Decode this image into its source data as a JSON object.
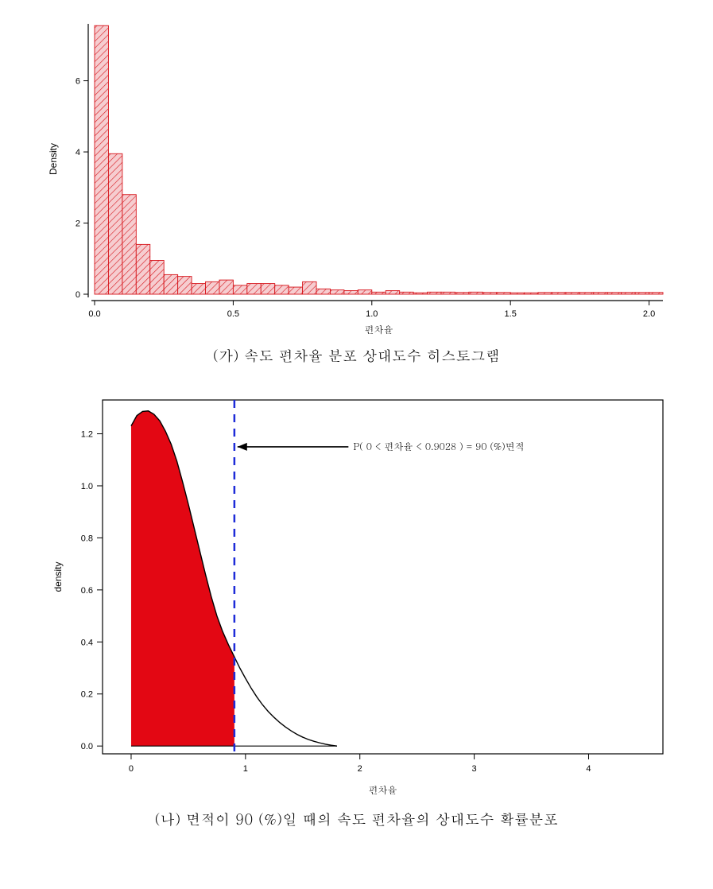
{
  "histogram": {
    "type": "histogram",
    "caption": "(가)  속도 편차율 분포 상대도수 히스토그램",
    "ylabel": "Density",
    "xlabel": "편차율",
    "bar_fill": "#f6cdd0",
    "bar_stroke": "#d6151b",
    "background_color": "#ffffff",
    "xlim": [
      0,
      2.05
    ],
    "ylim": [
      0,
      7.6
    ],
    "xticks": [
      0.0,
      0.5,
      1.0,
      1.5,
      2.0
    ],
    "xtick_labels": [
      "0.0",
      "0.5",
      "1.0",
      "1.5",
      "2.0"
    ],
    "yticks": [
      0,
      2,
      4,
      6
    ],
    "ytick_labels": [
      "0",
      "2",
      "4",
      "6"
    ],
    "bin_width": 0.05,
    "bin_starts": [
      0.0,
      0.05,
      0.1,
      0.15,
      0.2,
      0.25,
      0.3,
      0.35,
      0.4,
      0.45,
      0.5,
      0.55,
      0.6,
      0.65,
      0.7,
      0.75,
      0.8,
      0.85,
      0.9,
      0.95,
      1.0,
      1.05,
      1.1,
      1.15,
      1.2,
      1.25,
      1.3,
      1.35,
      1.4,
      1.45,
      1.5,
      1.55,
      1.6,
      1.65,
      1.7,
      1.75,
      1.8,
      1.85,
      1.9,
      1.95,
      2.0
    ],
    "densities": [
      7.55,
      3.95,
      2.8,
      1.4,
      0.95,
      0.55,
      0.5,
      0.3,
      0.35,
      0.4,
      0.25,
      0.3,
      0.3,
      0.25,
      0.2,
      0.35,
      0.15,
      0.12,
      0.1,
      0.12,
      0.06,
      0.1,
      0.06,
      0.04,
      0.06,
      0.06,
      0.05,
      0.06,
      0.05,
      0.05,
      0.04,
      0.04,
      0.05,
      0.05,
      0.05,
      0.05,
      0.05,
      0.05,
      0.05,
      0.05,
      0.05
    ],
    "label_fontsize": 12,
    "tick_fontsize": 11
  },
  "density": {
    "type": "area",
    "caption": "(나)  면적이 90 (%)일 때의 속도 편차율의 상대도수 확률분포",
    "ylabel": "density",
    "xlabel": "편차율",
    "fill_color": "#e30713",
    "curve_color": "#000000",
    "vline_color": "#1e2cd8",
    "vline_dash": "10 8",
    "background_color": "#ffffff",
    "vline_x": 0.9028,
    "annotation": "P( 0 < 편차율 < 0.9028 ) = 90 (%)면적",
    "annotation_arrow_from": [
      1.9,
      1.15
    ],
    "annotation_arrow_to": [
      0.93,
      1.15
    ],
    "annotation_fontsize": 12,
    "xlim": [
      -0.25,
      4.65
    ],
    "ylim": [
      -0.03,
      1.33
    ],
    "xticks": [
      0,
      1,
      2,
      3,
      4
    ],
    "xtick_labels": [
      "0",
      "1",
      "2",
      "3",
      "4"
    ],
    "yticks": [
      0.0,
      0.2,
      0.4,
      0.6,
      0.8,
      1.0,
      1.2
    ],
    "ytick_labels": [
      "0.0",
      "0.2",
      "0.4",
      "0.6",
      "0.8",
      "1.0",
      "1.2"
    ],
    "curve_x": [
      0.0,
      0.05,
      0.1,
      0.15,
      0.2,
      0.25,
      0.3,
      0.35,
      0.4,
      0.45,
      0.5,
      0.55,
      0.6,
      0.65,
      0.7,
      0.75,
      0.8,
      0.85,
      0.9,
      0.95,
      1.0,
      1.05,
      1.1,
      1.15,
      1.2,
      1.25,
      1.3,
      1.35,
      1.4,
      1.45,
      1.5,
      1.55,
      1.6,
      1.65,
      1.7,
      1.75,
      1.8
    ],
    "curve_y": [
      1.23,
      1.27,
      1.286,
      1.288,
      1.275,
      1.25,
      1.21,
      1.16,
      1.095,
      1.015,
      0.93,
      0.84,
      0.75,
      0.66,
      0.575,
      0.5,
      0.44,
      0.39,
      0.345,
      0.3,
      0.26,
      0.222,
      0.188,
      0.158,
      0.132,
      0.11,
      0.09,
      0.073,
      0.058,
      0.045,
      0.034,
      0.025,
      0.018,
      0.012,
      0.007,
      0.003,
      0.0
    ],
    "label_fontsize": 12,
    "tick_fontsize": 11
  }
}
